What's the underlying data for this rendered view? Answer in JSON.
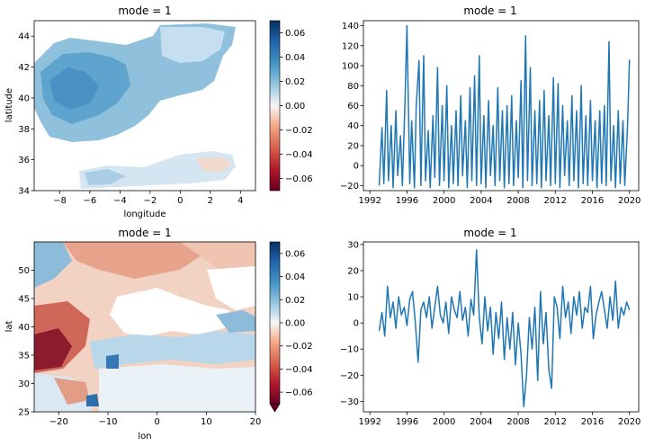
{
  "chart_data": [
    {
      "type": "heatmap",
      "title": "mode = 1",
      "xlabel": "longitude",
      "ylabel": "latitude",
      "xlim": [
        -9.7,
        5
      ],
      "ylim": [
        34,
        45
      ],
      "xticks": [
        -8,
        -6,
        -4,
        -2,
        0,
        2,
        4
      ],
      "yticks": [
        34,
        36,
        38,
        40,
        42,
        44
      ],
      "colorbar": {
        "min": -0.07,
        "max": 0.07,
        "ticks": [
          0.06,
          0.04,
          0.02,
          0.0,
          -0.02,
          -0.04,
          -0.06
        ],
        "colormap": "RdBu"
      },
      "description_values": {
        "land_main": 0.035,
        "land_max": 0.05,
        "sea": null
      }
    },
    {
      "type": "line",
      "title": "mode = 1",
      "xlim": [
        1991.3,
        2021.0
      ],
      "ylim": [
        -25,
        145
      ],
      "xticks": [
        1992,
        1996,
        2000,
        2004,
        2008,
        2012,
        2016,
        2020
      ],
      "yticks": [
        140,
        120,
        100,
        80,
        60,
        40,
        20,
        0,
        -20
      ],
      "color": "#1f77b4",
      "x": [
        1993.0,
        1993.3,
        1993.5,
        1993.8,
        1994.0,
        1994.3,
        1994.5,
        1994.8,
        1995.0,
        1995.3,
        1995.5,
        1995.8,
        1996.0,
        1996.3,
        1996.5,
        1996.8,
        1997.0,
        1997.3,
        1997.5,
        1997.8,
        1998.0,
        1998.3,
        1998.5,
        1998.8,
        1999.0,
        1999.3,
        1999.5,
        1999.8,
        2000.0,
        2000.3,
        2000.5,
        2000.8,
        2001.0,
        2001.3,
        2001.5,
        2001.8,
        2002.0,
        2002.3,
        2002.5,
        2002.8,
        2003.0,
        2003.3,
        2003.5,
        2003.8,
        2004.0,
        2004.3,
        2004.5,
        2004.8,
        2005.0,
        2005.3,
        2005.5,
        2005.8,
        2006.0,
        2006.3,
        2006.5,
        2006.8,
        2007.0,
        2007.3,
        2007.5,
        2007.8,
        2008.0,
        2008.3,
        2008.5,
        2008.8,
        2009.0,
        2009.3,
        2009.5,
        2009.8,
        2010.0,
        2010.3,
        2010.5,
        2010.8,
        2011.0,
        2011.3,
        2011.5,
        2011.8,
        2012.0,
        2012.3,
        2012.5,
        2012.8,
        2013.0,
        2013.3,
        2013.5,
        2013.8,
        2014.0,
        2014.3,
        2014.5,
        2014.8,
        2015.0,
        2015.3,
        2015.5,
        2015.8,
        2016.0,
        2016.3,
        2016.5,
        2016.8,
        2017.0,
        2017.3,
        2017.5,
        2017.8,
        2018.0,
        2018.3,
        2018.5,
        2018.8,
        2019.0,
        2019.3,
        2019.5,
        2019.8,
        2020.0
      ],
      "y": [
        -20,
        38,
        -18,
        75,
        -15,
        40,
        -22,
        55,
        -10,
        30,
        -20,
        70,
        140,
        -18,
        45,
        -22,
        60,
        105,
        -20,
        110,
        -15,
        35,
        -22,
        50,
        -12,
        98,
        -20,
        60,
        -15,
        80,
        -22,
        40,
        -18,
        55,
        -20,
        70,
        -10,
        45,
        -22,
        78,
        -15,
        90,
        -20,
        110,
        -18,
        50,
        -22,
        65,
        -10,
        40,
        -20,
        78,
        -15,
        55,
        -22,
        60,
        -18,
        70,
        -20,
        45,
        -12,
        85,
        -22,
        130,
        -15,
        98,
        -20,
        55,
        -18,
        65,
        -22,
        75,
        -15,
        50,
        -20,
        88,
        -18,
        82,
        -22,
        60,
        -10,
        45,
        -20,
        70,
        -15,
        55,
        -22,
        80,
        -18,
        50,
        -20,
        65,
        -15,
        45,
        -22,
        55,
        -18,
        60,
        -20,
        124,
        -15,
        40,
        -22,
        55,
        -18,
        45,
        -20,
        40,
        106
      ]
    },
    {
      "type": "heatmap",
      "title": "mode = 1",
      "xlabel": "lon",
      "ylabel": "lat",
      "xlim": [
        -25,
        20
      ],
      "ylim": [
        25,
        55
      ],
      "xticks": [
        -20,
        -10,
        0,
        10,
        20
      ],
      "yticks": [
        25,
        30,
        35,
        40,
        45,
        50
      ],
      "colorbar": {
        "min": -0.07,
        "max": 0.07,
        "ticks": [
          0.06,
          0.04,
          0.02,
          0.0,
          -0.02,
          -0.04,
          -0.06
        ],
        "colormap": "RdBu",
        "extend": "min"
      }
    },
    {
      "type": "line",
      "title": "mode = 1",
      "xlim": [
        1991.3,
        2021.0
      ],
      "ylim": [
        -34,
        31
      ],
      "xticks": [
        1992,
        1996,
        2000,
        2004,
        2008,
        2012,
        2016,
        2020
      ],
      "yticks": [
        30,
        20,
        10,
        0,
        -10,
        -20,
        -30
      ],
      "color": "#1f77b4",
      "x": [
        1993.0,
        1993.3,
        1993.6,
        1993.9,
        1994.2,
        1994.5,
        1994.8,
        1995.1,
        1995.4,
        1995.7,
        1996.0,
        1996.3,
        1996.6,
        1996.9,
        1997.2,
        1997.5,
        1997.8,
        1998.1,
        1998.4,
        1998.7,
        1999.0,
        1999.3,
        1999.6,
        1999.9,
        2000.2,
        2000.5,
        2000.8,
        2001.1,
        2001.4,
        2001.7,
        2002.0,
        2002.3,
        2002.6,
        2002.9,
        2003.2,
        2003.5,
        2003.8,
        2004.1,
        2004.4,
        2004.7,
        2005.0,
        2005.3,
        2005.6,
        2005.9,
        2006.2,
        2006.5,
        2006.8,
        2007.1,
        2007.4,
        2007.7,
        2008.0,
        2008.3,
        2008.6,
        2008.9,
        2009.2,
        2009.5,
        2009.8,
        2010.1,
        2010.4,
        2010.7,
        2011.0,
        2011.3,
        2011.6,
        2011.9,
        2012.2,
        2012.5,
        2012.8,
        2013.1,
        2013.4,
        2013.7,
        2014.0,
        2014.3,
        2014.6,
        2014.9,
        2015.2,
        2015.5,
        2015.8,
        2016.1,
        2016.4,
        2016.7,
        2017.0,
        2017.3,
        2017.6,
        2017.9,
        2018.2,
        2018.5,
        2018.8,
        2019.1,
        2019.4,
        2019.7,
        2020.0
      ],
      "y": [
        -3,
        4,
        -5,
        14,
        2,
        8,
        -2,
        10,
        3,
        6,
        -1,
        9,
        12,
        0,
        -15,
        5,
        8,
        2,
        10,
        -2,
        6,
        14,
        3,
        0,
        8,
        -4,
        10,
        5,
        2,
        12,
        1,
        6,
        -5,
        9,
        3,
        28,
        2,
        -8,
        10,
        -3,
        6,
        -12,
        4,
        -6,
        8,
        -14,
        2,
        -10,
        4,
        -16,
        0,
        -12,
        -32,
        -20,
        2,
        -10,
        6,
        -22,
        12,
        -8,
        4,
        -18,
        -25,
        10,
        6,
        -6,
        14,
        2,
        8,
        -4,
        10,
        3,
        12,
        -2,
        6,
        4,
        14,
        -6,
        3,
        8,
        12,
        5,
        -2,
        10,
        1,
        16,
        -2,
        6,
        3,
        8,
        5
      ]
    }
  ]
}
